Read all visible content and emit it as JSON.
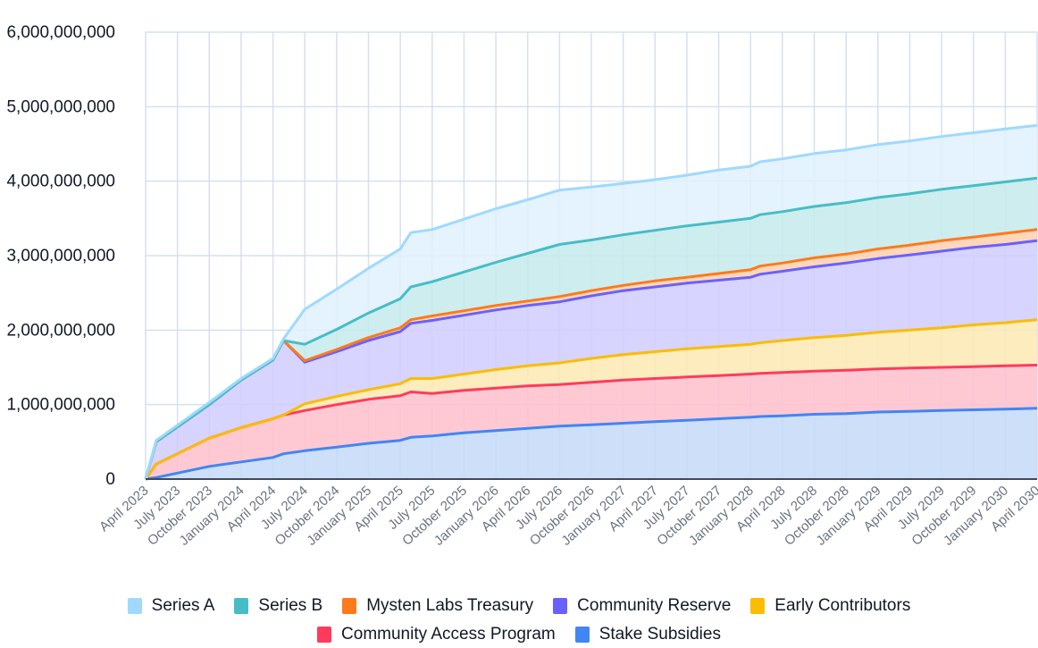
{
  "chart_data": {
    "type": "area",
    "stacked": true,
    "title": "",
    "xlabel": "",
    "ylabel": "",
    "ylim": [
      0,
      6000000000
    ],
    "yticks": [
      0,
      1000000000,
      2000000000,
      3000000000,
      4000000000,
      5000000000,
      6000000000
    ],
    "ytick_labels": [
      "0",
      "1,000,000,000",
      "2,000,000,000",
      "3,000,000,000",
      "4,000,000,000",
      "5,000,000,000",
      "6,000,000,000"
    ],
    "grid": true,
    "legend_position": "bottom",
    "x_tick_labels": [
      "April 2023",
      "July 2023",
      "October 2023",
      "January 2024",
      "April 2024",
      "July 2024",
      "October 2024",
      "January 2025",
      "April 2025",
      "July 2025",
      "October 2025",
      "January 2026",
      "April 2026",
      "July 2026",
      "October 2026",
      "January 2027",
      "April 2027",
      "July 2027",
      "October 2027",
      "January 2028",
      "April 2028",
      "July 2028",
      "October 2028",
      "January 2029",
      "April 2029",
      "July 2029",
      "October 2029",
      "January 2030",
      "April 2030"
    ],
    "x": [
      0,
      0.33,
      2,
      3,
      4,
      4.33,
      5,
      6,
      7,
      8,
      8.33,
      9,
      10,
      11,
      12,
      13,
      14,
      15,
      16,
      17,
      18,
      19,
      19.3,
      20,
      21,
      22,
      23,
      24,
      25,
      26,
      27,
      28
    ],
    "x_unit": "quarters since April 2023",
    "series": [
      {
        "name": "Stake Subsidies",
        "color": "#4285f4",
        "fill": "#c5d9f8",
        "values": [
          0,
          20000000,
          170000000,
          230000000,
          290000000,
          340000000,
          380000000,
          430000000,
          480000000,
          520000000,
          560000000,
          580000000,
          620000000,
          650000000,
          680000000,
          710000000,
          730000000,
          750000000,
          770000000,
          790000000,
          810000000,
          830000000,
          840000000,
          850000000,
          870000000,
          880000000,
          900000000,
          910000000,
          920000000,
          930000000,
          940000000,
          950000000
        ]
      },
      {
        "name": "Community Access Program",
        "color": "#ff3b5c",
        "fill": "#ffc0cc",
        "values": [
          0,
          180000000,
          380000000,
          460000000,
          520000000,
          520000000,
          540000000,
          570000000,
          590000000,
          600000000,
          610000000,
          570000000,
          570000000,
          570000000,
          570000000,
          560000000,
          570000000,
          580000000,
          580000000,
          580000000,
          580000000,
          580000000,
          580000000,
          580000000,
          580000000,
          580000000,
          580000000,
          580000000,
          580000000,
          580000000,
          580000000,
          580000000
        ]
      },
      {
        "name": "Early Contributors",
        "color": "#fbbc04",
        "fill": "#fde9b3",
        "values": [
          0,
          0,
          0,
          0,
          0,
          0,
          90000000,
          110000000,
          130000000,
          160000000,
          180000000,
          200000000,
          220000000,
          250000000,
          270000000,
          290000000,
          320000000,
          340000000,
          360000000,
          380000000,
          390000000,
          400000000,
          410000000,
          430000000,
          450000000,
          470000000,
          490000000,
          510000000,
          530000000,
          560000000,
          580000000,
          610000000
        ]
      },
      {
        "name": "Community Reserve",
        "color": "#6961ff",
        "fill": "#d0cdff",
        "values": [
          0,
          300000000,
          450000000,
          640000000,
          790000000,
          1000000000,
          560000000,
          600000000,
          660000000,
          700000000,
          740000000,
          780000000,
          790000000,
          800000000,
          810000000,
          820000000,
          840000000,
          860000000,
          870000000,
          880000000,
          890000000,
          900000000,
          920000000,
          930000000,
          950000000,
          970000000,
          990000000,
          1010000000,
          1030000000,
          1040000000,
          1050000000,
          1060000000
        ]
      },
      {
        "name": "Mysten Labs Treasury",
        "color": "#ff7a1a",
        "fill": "#ffd0b0",
        "values": [
          0,
          0,
          0,
          0,
          0,
          0,
          20000000,
          30000000,
          40000000,
          50000000,
          50000000,
          60000000,
          60000000,
          60000000,
          60000000,
          70000000,
          70000000,
          70000000,
          80000000,
          80000000,
          90000000,
          100000000,
          110000000,
          110000000,
          120000000,
          120000000,
          130000000,
          130000000,
          140000000,
          140000000,
          150000000,
          150000000
        ]
      },
      {
        "name": "Series B",
        "color": "#46bdc6",
        "fill": "#c6eaec",
        "values": [
          0,
          0,
          0,
          0,
          0,
          0,
          220000000,
          270000000,
          330000000,
          390000000,
          440000000,
          460000000,
          520000000,
          580000000,
          640000000,
          700000000,
          680000000,
          680000000,
          680000000,
          690000000,
          690000000,
          690000000,
          690000000,
          690000000,
          690000000,
          690000000,
          690000000,
          690000000,
          690000000,
          690000000,
          690000000,
          690000000
        ]
      },
      {
        "name": "Series A",
        "color": "#9fd9ff",
        "fill": "#dff1fd",
        "values": [
          0,
          20000000,
          30000000,
          20000000,
          20000000,
          20000000,
          470000000,
          540000000,
          600000000,
          670000000,
          730000000,
          700000000,
          710000000,
          720000000,
          720000000,
          730000000,
          710000000,
          690000000,
          680000000,
          680000000,
          700000000,
          700000000,
          710000000,
          710000000,
          710000000,
          710000000,
          710000000,
          710000000,
          710000000,
          710000000,
          710000000,
          710000000
        ]
      }
    ]
  },
  "legend": {
    "row1": [
      {
        "label": "Series A",
        "color": "#9fd9ff"
      },
      {
        "label": "Series B",
        "color": "#46bdc6"
      },
      {
        "label": "Mysten Labs Treasury",
        "color": "#ff7a1a"
      },
      {
        "label": "Community Reserve",
        "color": "#6961ff"
      },
      {
        "label": "Early Contributors",
        "color": "#fbbc04"
      }
    ],
    "row2": [
      {
        "label": "Community Access Program",
        "color": "#ff3b5c"
      },
      {
        "label": "Stake Subsidies",
        "color": "#4285f4"
      }
    ]
  }
}
